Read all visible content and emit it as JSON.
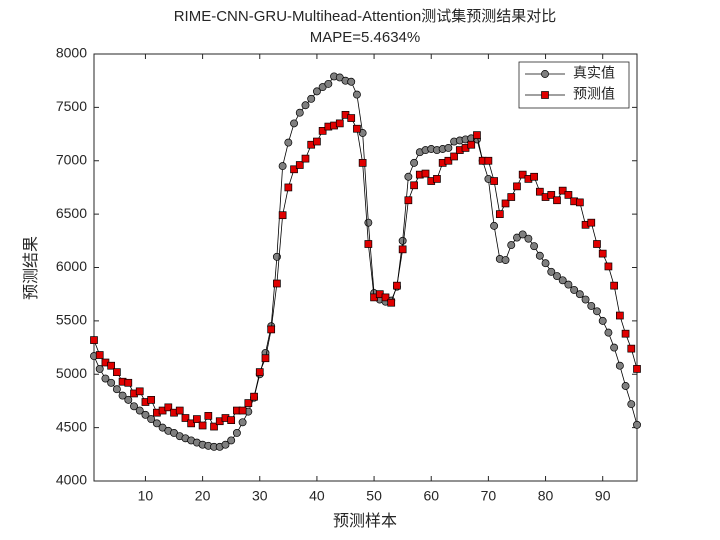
{
  "chart_data": {
    "type": "line",
    "title": "RIME-CNN-GRU-Multihead-Attention测试集预测结果对比",
    "subtitle": "MAPE=5.4634%",
    "x_label": "预测样本",
    "y_label": "预测结果",
    "xlim": [
      1,
      96
    ],
    "xticks": [
      10,
      20,
      30,
      40,
      50,
      60,
      70,
      80,
      90
    ],
    "ylim": [
      4000,
      8000
    ],
    "yticks": [
      4000,
      4500,
      5000,
      5500,
      6000,
      6500,
      7000,
      7500,
      8000
    ],
    "grid": false,
    "legend": "top-right",
    "x": [
      1,
      2,
      3,
      4,
      5,
      6,
      7,
      8,
      9,
      10,
      11,
      12,
      13,
      14,
      15,
      16,
      17,
      18,
      19,
      20,
      21,
      22,
      23,
      24,
      25,
      26,
      27,
      28,
      29,
      30,
      31,
      32,
      33,
      34,
      35,
      36,
      37,
      38,
      39,
      40,
      41,
      42,
      43,
      44,
      45,
      46,
      47,
      48,
      49,
      50,
      51,
      52,
      53,
      54,
      55,
      56,
      57,
      58,
      59,
      60,
      61,
      62,
      63,
      64,
      65,
      66,
      67,
      68,
      69,
      70,
      71,
      72,
      73,
      74,
      75,
      76,
      77,
      78,
      79,
      80,
      81,
      82,
      83,
      84,
      85,
      86,
      87,
      88,
      89,
      90,
      91,
      92,
      93,
      94,
      95,
      96
    ],
    "series": [
      {
        "name": "真实值",
        "color": "#7f7f7f",
        "marker": "circle",
        "values": [
          5170,
          5050,
          4960,
          4920,
          4860,
          4800,
          4760,
          4700,
          4660,
          4620,
          4580,
          4540,
          4500,
          4470,
          4450,
          4420,
          4400,
          4380,
          4360,
          4340,
          4330,
          4320,
          4320,
          4340,
          4380,
          4450,
          4550,
          4650,
          4780,
          5000,
          5200,
          5450,
          6100,
          6950,
          7170,
          7350,
          7450,
          7520,
          7580,
          7650,
          7690,
          7720,
          7790,
          7780,
          7750,
          7740,
          7620,
          7260,
          6420,
          5760,
          5700,
          5680,
          5690,
          5820,
          6250,
          6850,
          6980,
          7080,
          7100,
          7110,
          7100,
          7110,
          7120,
          7180,
          7190,
          7200,
          7210,
          7200,
          7000,
          6830,
          6390,
          6080,
          6070,
          6210,
          6280,
          6310,
          6270,
          6200,
          6110,
          6040,
          5960,
          5920,
          5880,
          5840,
          5790,
          5750,
          5700,
          5640,
          5590,
          5500,
          5390,
          5250,
          5080,
          4890,
          4720,
          4526
        ]
      },
      {
        "name": "预测值",
        "color": "#e00000",
        "marker": "square",
        "values": [
          5320,
          5180,
          5110,
          5080,
          5020,
          4930,
          4920,
          4820,
          4840,
          4740,
          4760,
          4640,
          4660,
          4690,
          4640,
          4660,
          4590,
          4540,
          4580,
          4520,
          4610,
          4510,
          4560,
          4590,
          4570,
          4660,
          4660,
          4730,
          4790,
          5020,
          5150,
          5420,
          5850,
          6490,
          6750,
          6920,
          6960,
          7020,
          7150,
          7180,
          7280,
          7320,
          7330,
          7350,
          7430,
          7400,
          7300,
          6980,
          6220,
          5720,
          5750,
          5720,
          5670,
          5830,
          6170,
          6630,
          6770,
          6870,
          6880,
          6810,
          6830,
          6980,
          7000,
          7040,
          7100,
          7120,
          7150,
          7240,
          7000,
          7000,
          6810,
          6500,
          6600,
          6660,
          6760,
          6870,
          6830,
          6850,
          6710,
          6660,
          6680,
          6630,
          6720,
          6680,
          6620,
          6610,
          6400,
          6420,
          6220,
          6130,
          6010,
          5830,
          5550,
          5380,
          5240,
          5050
        ]
      }
    ]
  }
}
